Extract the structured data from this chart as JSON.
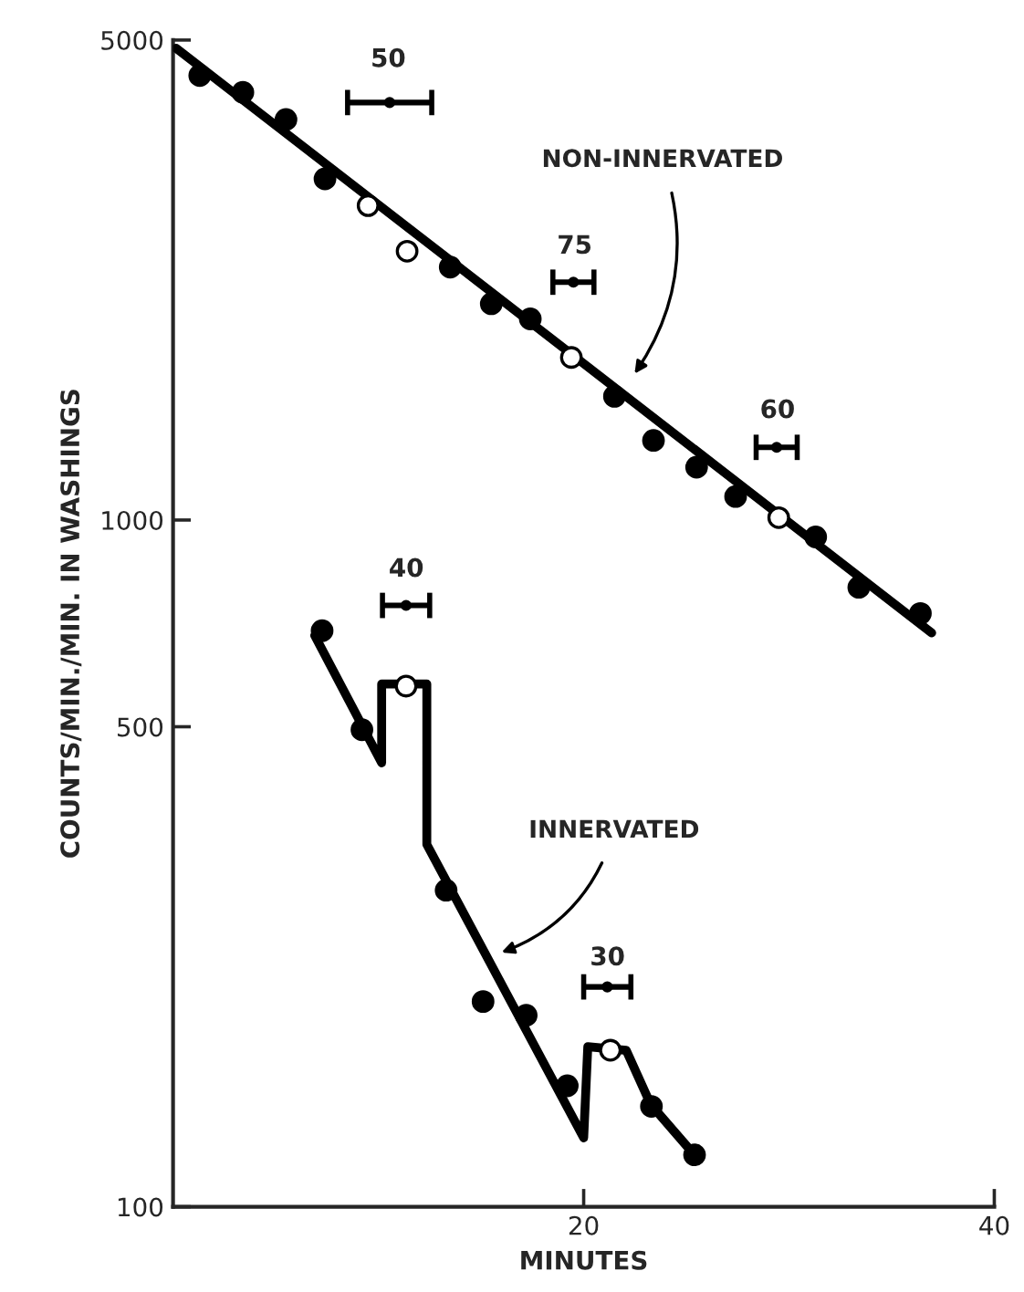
{
  "chart_data": {
    "type": "scatter",
    "xlabel": "MINUTES",
    "ylabel": "COUNTS/MIN./MIN. IN WASHINGS",
    "log": "y",
    "xlim": [
      0,
      40
    ],
    "xticks": [
      20,
      40
    ],
    "ylim": [
      100,
      5000
    ],
    "yticks": [
      100,
      500,
      1000,
      5000
    ],
    "grid": false,
    "marker": "circle",
    "series": [
      {
        "color": "#000000",
        "x": [
          1.3,
          3.4,
          5.5,
          7.4,
          13.5,
          15.5,
          17.4,
          21.5,
          23.4,
          25.5,
          27.4,
          31.3,
          33.4,
          36.4
        ],
        "values": [
          4440,
          4195,
          3830,
          3140,
          2335,
          2065,
          1963,
          1514,
          1306,
          1194,
          1082,
          945,
          798,
          731
        ]
      },
      {
        "color": "#ffffff",
        "x": [
          9.5,
          11.4,
          19.4,
          29.5
        ],
        "values": [
          2870,
          2463,
          1725,
          1008
        ]
      },
      {
        "type": "line",
        "color": "#000000",
        "marker": "none",
        "x": [
          0.15,
          36.95
        ],
        "values": [
          4865,
          685
        ]
      },
      {
        "type": "line",
        "color": "#000000",
        "marker": "none",
        "x": [
          6.9,
          10.16,
          10.16,
          12.36,
          12.36,
          20.0,
          20.2,
          22.07,
          23.26,
          25.5
        ],
        "values": [
          679,
          443,
          577,
          577,
          337,
          126,
          171,
          169,
          141,
          118
        ]
      },
      {
        "color": "#000000",
        "x": [
          7.26,
          9.2,
          13.3,
          15.1,
          17.2,
          19.2,
          23.3,
          25.4
        ],
        "values": [
          690,
          495,
          289,
          199,
          190,
          150,
          140,
          119
        ]
      },
      {
        "color": "#ffffff",
        "x": [
          11.35,
          21.3
        ],
        "values": [
          573,
          169
        ]
      },
      {
        "color": "#000000",
        "x": [
          10.55
        ],
        "values": [
          4055
        ],
        "xerrors": [
          [
            8.5,
            12.6
          ]
        ]
      },
      {
        "color": "#000000",
        "x": [
          19.5
        ],
        "values": [
          2220
        ],
        "xerrors": [
          [
            18.5,
            20.5
          ]
        ]
      },
      {
        "color": "#000000",
        "x": [
          29.4
        ],
        "values": [
          1276
        ],
        "xerrors": [
          [
            28.4,
            30.4
          ]
        ]
      },
      {
        "color": "#000000",
        "x": [
          11.35
        ],
        "values": [
          751
        ],
        "xerrors": [
          [
            10.2,
            12.5
          ]
        ]
      },
      {
        "color": "#000000",
        "x": [
          21.15
        ],
        "values": [
          209
        ],
        "xerrors": [
          [
            20.0,
            22.3
          ]
        ]
      }
    ],
    "annotations": [
      "NON-INNERVATED",
      "INNERVATED",
      "50",
      "75",
      "60",
      "40",
      "30"
    ]
  }
}
